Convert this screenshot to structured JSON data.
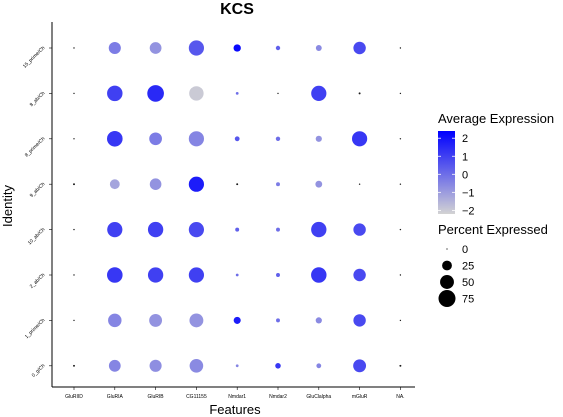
{
  "chart_data": {
    "type": "dotplot",
    "title": "KCS",
    "xlabel": "Features",
    "ylabel": "Identity",
    "features": [
      "GluRIID",
      "GluRIA",
      "GluRIB",
      "CG11155",
      "Nmdar1",
      "Nmdar2",
      "GluClalpha",
      "mGluR",
      "NA."
    ],
    "identities": [
      "15_prime/Ch",
      "8_ab/Ch",
      "8_prime/Ch",
      "9_ab/Ch",
      "10_ab/Ch",
      "2_ab/Ch",
      "1_prime/Ch",
      "0_g/Ch"
    ],
    "avg_expression": [
      [
        0,
        -0.3,
        -0.8,
        0.5,
        2.2,
        0.3,
        -0.6,
        0.8,
        0
      ],
      [
        0,
        1.0,
        1.5,
        -2.0,
        0,
        -1.5,
        1.0,
        -0.5,
        0
      ],
      [
        0,
        1.2,
        -0.3,
        -0.5,
        0.5,
        0,
        -0.8,
        1.2,
        0
      ],
      [
        0,
        -1.2,
        -0.8,
        1.8,
        -0.5,
        -0.3,
        -0.8,
        0,
        0
      ],
      [
        0,
        1.0,
        1.0,
        0.8,
        0.3,
        0,
        1.0,
        0.8,
        0
      ],
      [
        0,
        1.2,
        1.0,
        1.0,
        0,
        0.3,
        1.2,
        0.8,
        0
      ],
      [
        0,
        -0.5,
        -0.8,
        -0.8,
        1.8,
        0,
        -0.6,
        0.8,
        0
      ],
      [
        0,
        -0.5,
        -0.7,
        -0.6,
        -0.5,
        1.2,
        -0.5,
        0.8,
        1.5
      ]
    ],
    "pct_expressed": [
      [
        0.5,
        38,
        36,
        60,
        14,
        5,
        9,
        40,
        0.5
      ],
      [
        0.5,
        62,
        72,
        54,
        2,
        0.5,
        60,
        1,
        0.5
      ],
      [
        0.5,
        63,
        42,
        60,
        6,
        5,
        10,
        60,
        0.5
      ],
      [
        1,
        25,
        35,
        60,
        1,
        4,
        12,
        0.5,
        0.5
      ],
      [
        0.5,
        60,
        61,
        60,
        4,
        4,
        61,
        40,
        0.5
      ],
      [
        0.5,
        63,
        61,
        60,
        2,
        4,
        62,
        40,
        0.5
      ],
      [
        0.5,
        47,
        43,
        50,
        13,
        4,
        10,
        40,
        0.5
      ],
      [
        1,
        36,
        38,
        48,
        2,
        8,
        6,
        43,
        1
      ]
    ],
    "color_scale": {
      "low": "#d3d3d3",
      "high": "#0000ff",
      "min": -2.2,
      "max": 2.4
    },
    "legend_color": {
      "title": "Average Expression",
      "ticks": [
        2,
        1,
        0,
        -1,
        -2
      ],
      "tick_labels": [
        "2",
        "1",
        "0",
        "−1",
        "−2"
      ]
    },
    "legend_size": {
      "title": "Percent Expressed",
      "values": [
        0,
        25,
        50,
        75
      ],
      "labels": [
        "0",
        "25",
        "50",
        "75"
      ]
    },
    "grid": false,
    "legend_position": "right"
  }
}
